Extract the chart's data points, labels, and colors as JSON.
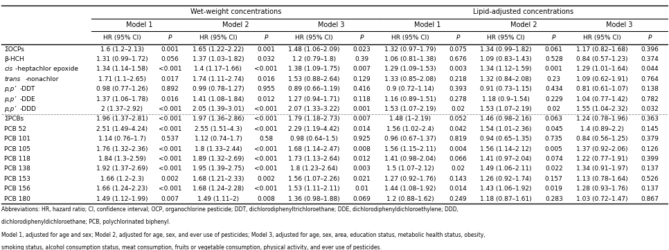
{
  "title_wet": "Wet-weight concentrations",
  "title_lipid": "Lipid-adjusted concentrations",
  "model_headers": [
    "Model 1",
    "Model 2",
    "Model 3"
  ],
  "rows": [
    {
      "label": "ΣOCPs",
      "label_style": "normal",
      "wet": [
        "1.6 (1.2–2.13)",
        "0.001",
        "1.65 (1.22–2.22)",
        "0.001",
        "1.48 (1.06–2.09)",
        "0.023"
      ],
      "lipid": [
        "1.32 (0.97–1.79)",
        "0.075",
        "1.34 (0.99–1.82)",
        "0.061",
        "1.17 (0.82–1.68)",
        "0.396"
      ],
      "separator_before": false
    },
    {
      "label": "β-HCH",
      "label_style": "normal",
      "wet": [
        "1.31 (0.99–1.72)",
        "0.056",
        "1.37 (1.03–1.82)",
        "0.032",
        "1.2 (0.79–1.8)",
        "0.39"
      ],
      "lipid": [
        "1.06 (0.81–1.38)",
        "0.676",
        "1.09 (0.83–1.43)",
        "0.528",
        "0.84 (0.57–1.23)",
        "0.374"
      ],
      "separator_before": false
    },
    {
      "label": "cis-heptachlor epoxide",
      "label_style": "italic_prefix",
      "italic_part": "cis",
      "normal_part": "-heptachlor epoxide",
      "wet": [
        "1.34 (1.14–1.58)",
        "<0.001",
        "1.4 (1.17–1.66)",
        "<0.001",
        "1.38 (1.09–1.75)",
        "0.007"
      ],
      "lipid": [
        "1.29 (1.09–1.53)",
        "0.003",
        "1.34 (1.12–1.59)",
        "0.001",
        "1.29 (1.01–1.64)",
        "0.044"
      ],
      "separator_before": false
    },
    {
      "label": "trans-nonachlor",
      "label_style": "italic_prefix",
      "italic_part": "trans",
      "normal_part": "-nonachlor",
      "wet": [
        "1.71 (1.1–2.65)",
        "0.017",
        "1.74 (1.11–2.74)",
        "0.016",
        "1.53 (0.88–2.64)",
        "0.129"
      ],
      "lipid": [
        "1.33 (0.85–2.08)",
        "0.218",
        "1.32 (0.84–2.08)",
        "0.23",
        "1.09 (0.62–1.91)",
        "0.764"
      ],
      "separator_before": false
    },
    {
      "label": "p,p’-DDT",
      "label_style": "italic",
      "italic_part": "p,p’",
      "normal_part": "-DDT",
      "wet": [
        "0.98 (0.77–1.26)",
        "0.892",
        "0.99 (0.78–1.27)",
        "0.955",
        "0.89 (0.66–1.19)",
        "0.416"
      ],
      "lipid": [
        "0.9 (0.72–1.14)",
        "0.393",
        "0.91 (0.73–1.15)",
        "0.434",
        "0.81 (0.61–1.07)",
        "0.138"
      ],
      "separator_before": false
    },
    {
      "label": "p,p’-DDE",
      "label_style": "italic",
      "italic_part": "p,p’",
      "normal_part": "-DDE",
      "wet": [
        "1.37 (1.06–1.78)",
        "0.016",
        "1.41 (1.08–1.84)",
        "0.012",
        "1.27 (0.94–1.71)",
        "0.118"
      ],
      "lipid": [
        "1.16 (0.89–1.51)",
        "0.278",
        "1.18 (0.9–1.54)",
        "0.229",
        "1.04 (0.77–1.42)",
        "0.782"
      ],
      "separator_before": false
    },
    {
      "label": "p,p’-DDD",
      "label_style": "italic",
      "italic_part": "p,p’",
      "normal_part": "-DDD",
      "wet": [
        "2 (1.37–2.92)",
        "<0.001",
        "2.05 (1.39–3.01)",
        "<0.001",
        "2.07 (1.33–3.22)",
        "0.001"
      ],
      "lipid": [
        "1.53 (1.07–2.19)",
        "0.02",
        "1.53 (1.07–2.19)",
        "0.02",
        "1.55 (1.04–2.32)",
        "0.032"
      ],
      "separator_before": false
    },
    {
      "label": "ΣPCBs",
      "label_style": "normal",
      "wet": [
        "1.96 (1.37–2.81)",
        "<0.001",
        "1.97 (1.36–2.86)",
        "<0.001",
        "1.79 (1.18–2.73)",
        "0.007"
      ],
      "lipid": [
        "1.48 (1–2.19)",
        "0.052",
        "1.46 (0.98–2.16)",
        "0.063",
        "1.24 (0.78–1.96)",
        "0.363"
      ],
      "separator_before": true
    },
    {
      "label": "PCB 52",
      "label_style": "normal",
      "wet": [
        "2.51 (1.49–4.24)",
        "<0.001",
        "2.55 (1.51–4.3)",
        "<0.001",
        "2.29 (1.19–4.42)",
        "0.014"
      ],
      "lipid": [
        "1.56 (1.02–2.4)",
        "0.042",
        "1.54 (1.01–2.36)",
        "0.045",
        "1.4 (0.89–2.2)",
        "0.145"
      ],
      "separator_before": false
    },
    {
      "label": "PCB 101",
      "label_style": "normal",
      "wet": [
        "1.14 (0.76–1.7)",
        "0.537",
        "1.12 (0.74–1.7)",
        "0.58",
        "0.98 (0.64–1.5)",
        "0.925"
      ],
      "lipid": [
        "0.96 (0.67–1.37)",
        "0.819",
        "0.94 (0.65–1.35)",
        "0.735",
        "0.84 (0.56–1.25)",
        "0.379"
      ],
      "separator_before": false
    },
    {
      "label": "PCB 105",
      "label_style": "normal",
      "wet": [
        "1.76 (1.32–2.36)",
        "<0.001",
        "1.8 (1.33–2.44)",
        "<0.001",
        "1.68 (1.14–2.47)",
        "0.008"
      ],
      "lipid": [
        "1.56 (1.15–2.11)",
        "0.004",
        "1.56 (1.14–2.12)",
        "0.005",
        "1.37 (0.92–2.06)",
        "0.126"
      ],
      "separator_before": false
    },
    {
      "label": "PCB 118",
      "label_style": "normal",
      "wet": [
        "1.84 (1.3–2.59)",
        "<0.001",
        "1.89 (1.32–2.69)",
        "<0.001",
        "1.73 (1.13–2.64)",
        "0.012"
      ],
      "lipid": [
        "1.41 (0.98–2.04)",
        "0.066",
        "1.41 (0.97–2.04)",
        "0.074",
        "1.22 (0.77–1.91)",
        "0.399"
      ],
      "separator_before": false
    },
    {
      "label": "PCB 138",
      "label_style": "normal",
      "wet": [
        "1.92 (1.37–2.69)",
        "<0.001",
        "1.95 (1.39–2.75)",
        "<0.001",
        "1.8 (1.23–2.64)",
        "0.003"
      ],
      "lipid": [
        "1.5 (1.07–2.12)",
        "0.02",
        "1.49 (1.06–2.11)",
        "0.022",
        "1.34 (0.91–1.97)",
        "0.137"
      ],
      "separator_before": false
    },
    {
      "label": "PCB 153",
      "label_style": "normal",
      "wet": [
        "1.66 (1.2–2.3)",
        "0.002",
        "1.68 (1.21–2.33)",
        "0.002",
        "1.56 (1.07–2.26)",
        "0.021"
      ],
      "lipid": [
        "1.27 (0.92–1.76)",
        "0.143",
        "1.26 (0.92–1.74)",
        "0.157",
        "1.13 (0.78–1.64)",
        "0.526"
      ],
      "separator_before": false
    },
    {
      "label": "PCB 156",
      "label_style": "normal",
      "wet": [
        "1.66 (1.24–2.23)",
        "<0.001",
        "1.68 (1.24–2.28)",
        "<0.001",
        "1.53 (1.11–2.11)",
        "0.01"
      ],
      "lipid": [
        "1.44 (1.08–1.92)",
        "0.014",
        "1.43 (1.06–1.92)",
        "0.019",
        "1.28 (0.93–1.76)",
        "0.137"
      ],
      "separator_before": false
    },
    {
      "label": "PCB 180",
      "label_style": "normal",
      "wet": [
        "1.49 (1.12–1.99)",
        "0.007",
        "1.49 (1.11–2)",
        "0.008",
        "1.36 (0.98–1.88)",
        "0.069"
      ],
      "lipid": [
        "1.2 (0.88–1.62)",
        "0.249",
        "1.18 (0.87–1.61)",
        "0.283",
        "1.03 (0.72–1.47)",
        "0.867"
      ],
      "separator_before": false
    }
  ],
  "footnotes": [
    "Abbreviations: HR, hazard ratio; CI, confidence interval; OCP, organochlorine pesticide; DDT, dichlorodiphenyltrichloroethane; DDE, dichlorodiphenyldichloroethylene; DDD,",
    "dichlorodiphenyldichloroethane; PCB, polychlorinated biphenyl.",
    "Model 1, adjusted for age and sex; Model 2, adjusted for age, sex, and ever use of pesticides; Model 3, adjusted for age, sex, area, education status, metabolic health status, obesity,",
    "smoking status, alcohol consumption status, meat consumption, fruits or vegetable consumption, physical activity, and ever use of pesticides."
  ],
  "bg_color": "#ffffff",
  "separator_color": "#888888",
  "font_size": 6.5,
  "header_font_size": 7.0
}
